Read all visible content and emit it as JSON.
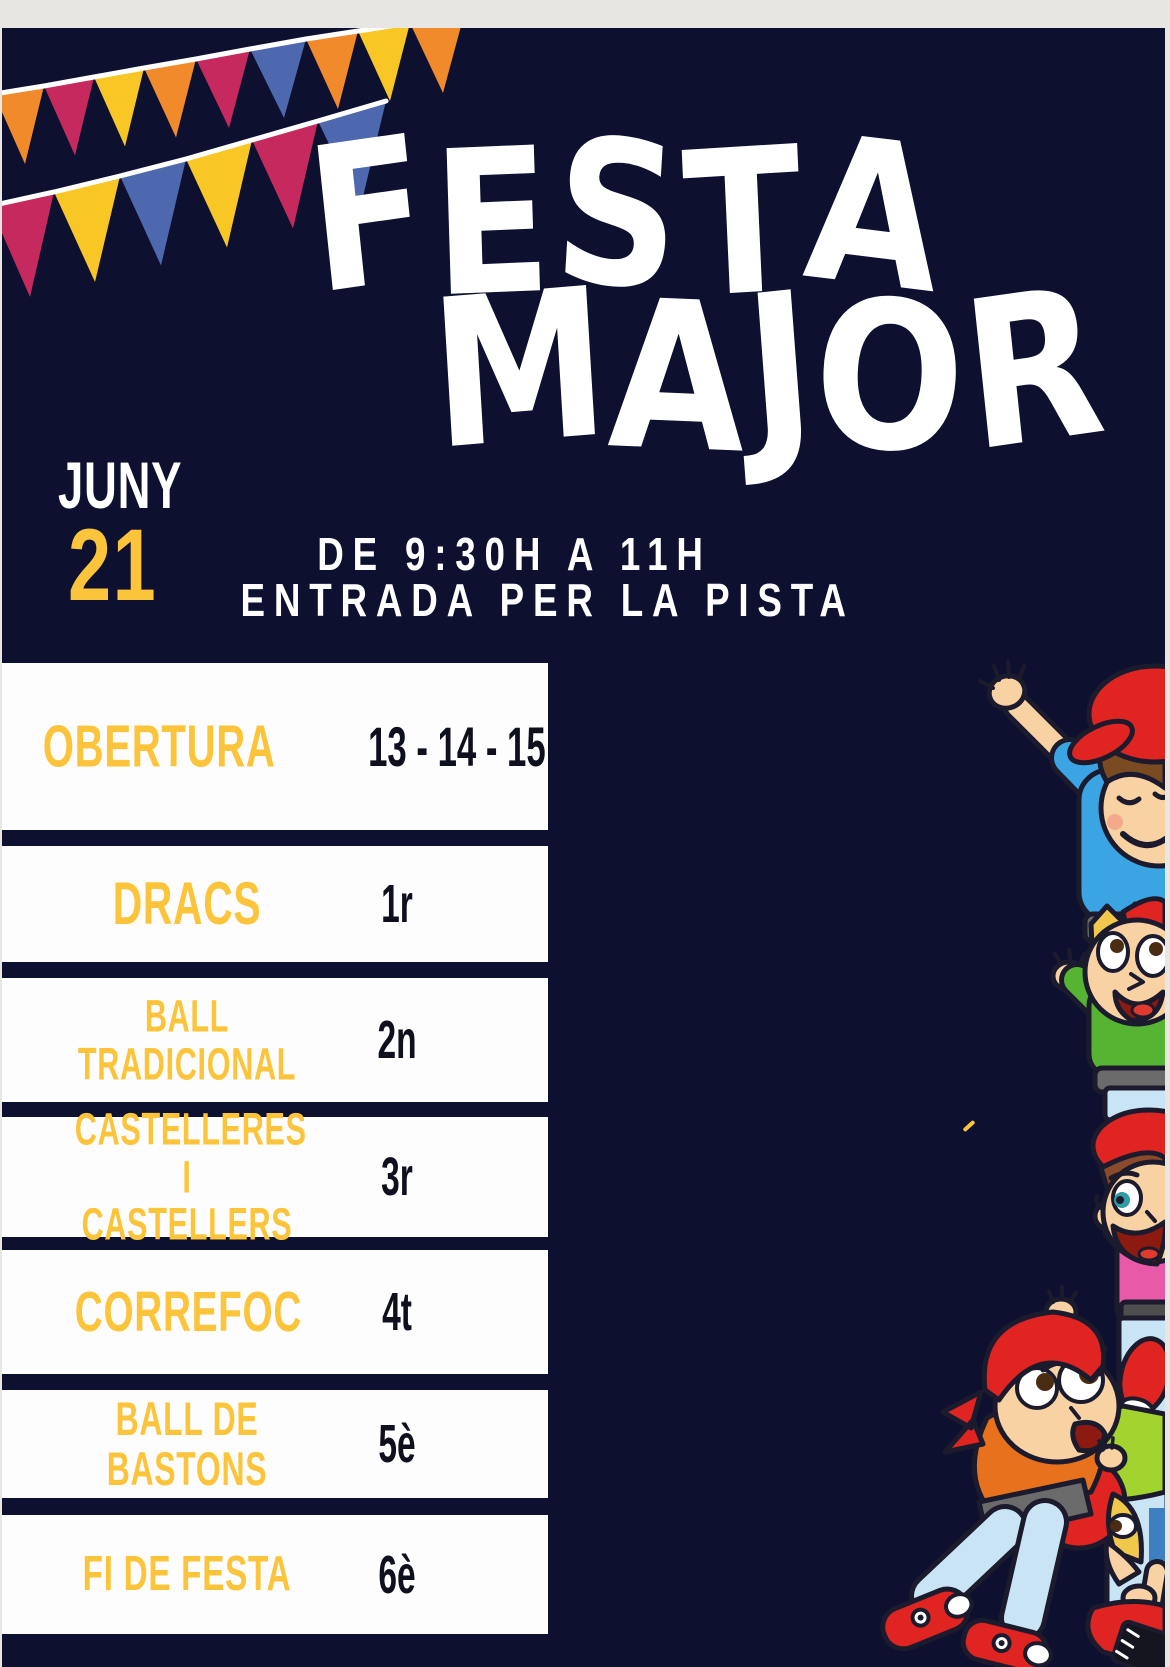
{
  "poster": {
    "title_line1": "FESTA",
    "title_line2": "MAJOR",
    "date": {
      "month": "JUNY",
      "day": "21"
    },
    "time_line1": "DE 9:30H A 11H",
    "time_line2": "ENTRADA PER LA PISTA",
    "schedule": {
      "rows": [
        {
          "label": "OBERTURA",
          "value": "13 - 14 - 15"
        },
        {
          "label": "DRACS",
          "value": "1r"
        },
        {
          "label": "BALL\nTRADICIONAL",
          "value": "2n"
        },
        {
          "label": "CASTELLERES I\nCASTELLERS",
          "value": "3r"
        },
        {
          "label": "CORREFOC",
          "value": "4t"
        },
        {
          "label": "BALL DE\nBASTONS",
          "value": "5è"
        },
        {
          "label": "FI DE FESTA",
          "value": "6è"
        }
      ]
    },
    "colors": {
      "background_navy": "#0D102E",
      "row_white": "#FDFDFD",
      "accent_yellow": "#FBC43B",
      "value_dark": "#0E101E",
      "title_white": "#FFFFFF",
      "string_white": "#FFFFFF",
      "frame_gray": "#E8E6E3"
    },
    "decor": {
      "illustration": "castellers-kids-human-tower",
      "flag_colors": {
        "orange": "#F08A2B",
        "red": "#C5295E",
        "yellow": "#F9C725",
        "blue": "#4D68AE"
      },
      "palette": {
        "skin": "#F8D2A2",
        "cap_red": "#E02421",
        "hair_brown": "#7A4A21",
        "hair_blonde": "#EFC84C",
        "shirt_blue": "#3BA5E3",
        "shirt_green": "#57B433",
        "shirt_pink": "#E85AA8",
        "shirt_orange": "#E8711D",
        "shirt_lime": "#A3D32E",
        "jeans": "#C9E5F5",
        "jeans_dark": "#3E7FC2",
        "belt": "#6B6B6B",
        "belt_dark": "#4E4E4E",
        "mouth": "#8C1A10",
        "tongue": "#E03A2F",
        "outline": "#1C1B2E",
        "cap_band": "#8A4A2B",
        "eye_teal": "#2E9BA6",
        "pupil": "#4A2C12",
        "blush": "#F4A98C",
        "sole_black": "#15151F"
      }
    }
  }
}
